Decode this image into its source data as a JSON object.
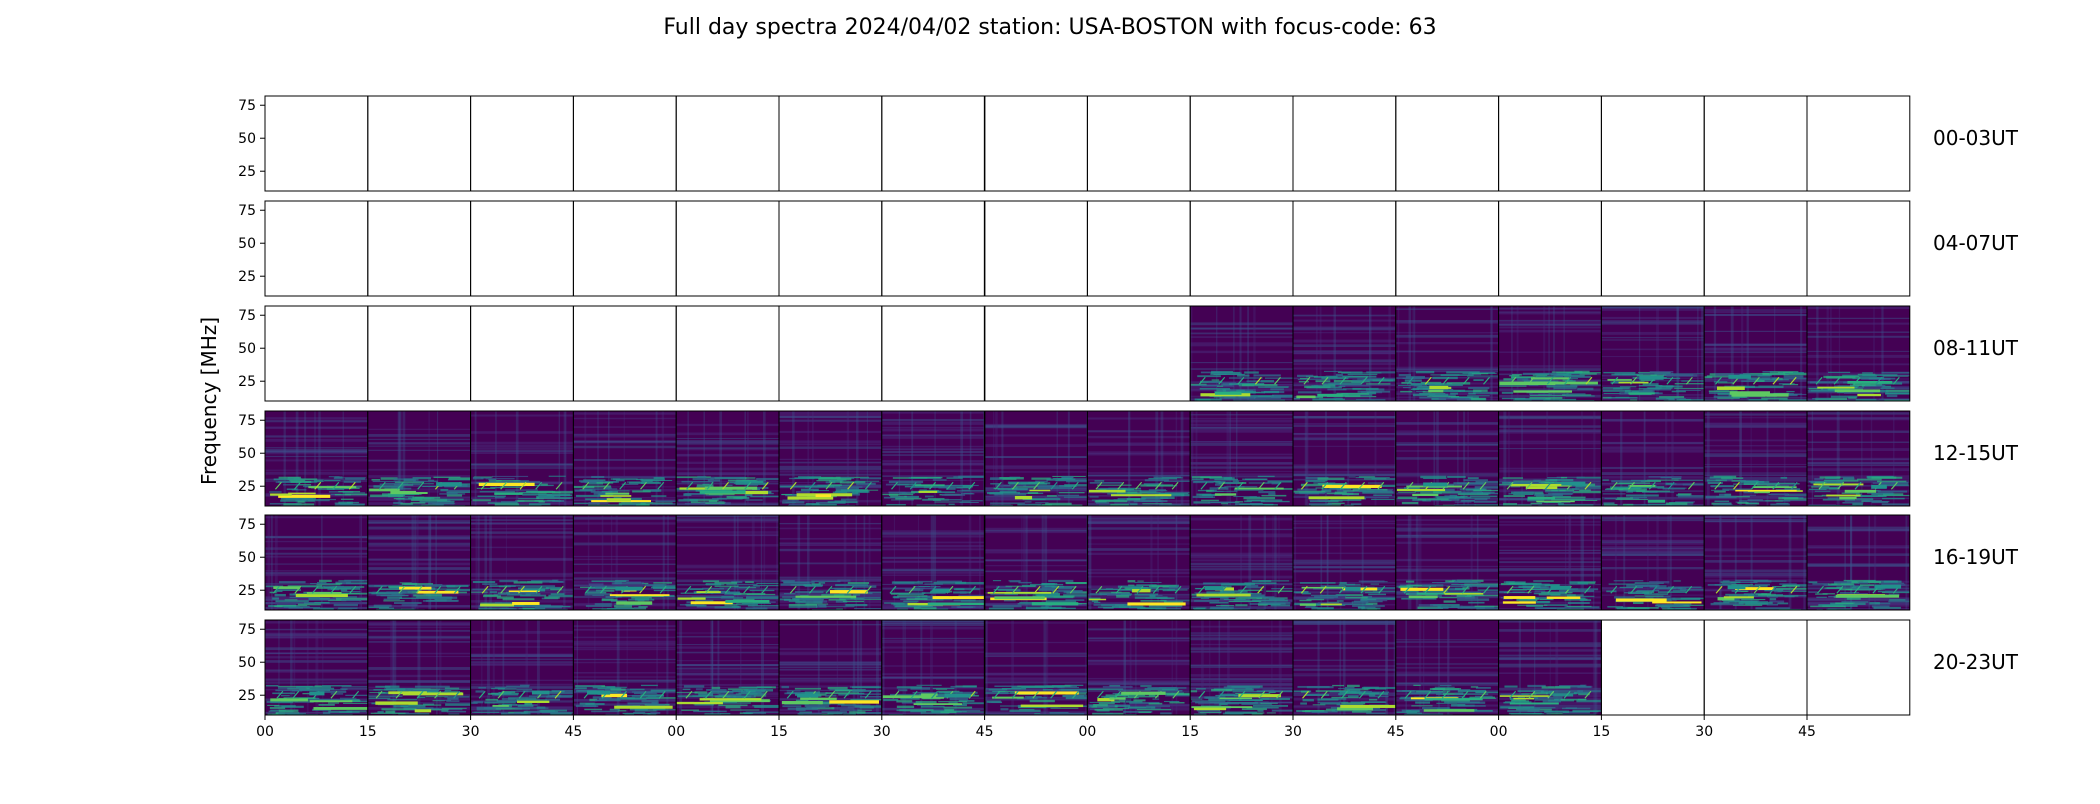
{
  "chart_data": {
    "type": "heatmap",
    "title": "Full day spectra 2024/04/02 station: USA-BOSTON with focus-code: 63",
    "ylabel": "Frequency [MHz]",
    "yticks": [
      25,
      50,
      75
    ],
    "ylim": [
      10,
      82
    ],
    "xtick_labels": [
      "00",
      "15",
      "30",
      "45",
      "00",
      "15",
      "30",
      "45",
      "00",
      "15",
      "30",
      "45",
      "00",
      "15",
      "30",
      "45"
    ],
    "rows": [
      {
        "label": "00-03UT",
        "panels_with_data": []
      },
      {
        "label": "04-07UT",
        "panels_with_data": []
      },
      {
        "label": "08-11UT",
        "panels_with_data": [
          9,
          10,
          11,
          12,
          13,
          14,
          15
        ]
      },
      {
        "label": "12-15UT",
        "panels_with_data": [
          0,
          1,
          2,
          3,
          4,
          5,
          6,
          7,
          8,
          9,
          10,
          11,
          12,
          13,
          14,
          15
        ]
      },
      {
        "label": "16-19UT",
        "panels_with_data": [
          0,
          1,
          2,
          3,
          4,
          5,
          6,
          7,
          8,
          9,
          10,
          11,
          12,
          13,
          14,
          15
        ]
      },
      {
        "label": "20-23UT",
        "panels_with_data": [
          0,
          1,
          2,
          3,
          4,
          5,
          6,
          7,
          8,
          9,
          10,
          11,
          12
        ]
      }
    ],
    "colormap": [
      "#440154",
      "#472d7b",
      "#3b528b",
      "#2c728e",
      "#21918c",
      "#28ae80",
      "#5ec962",
      "#addc30",
      "#fde725"
    ],
    "background_color": "#440154",
    "grid": false
  }
}
